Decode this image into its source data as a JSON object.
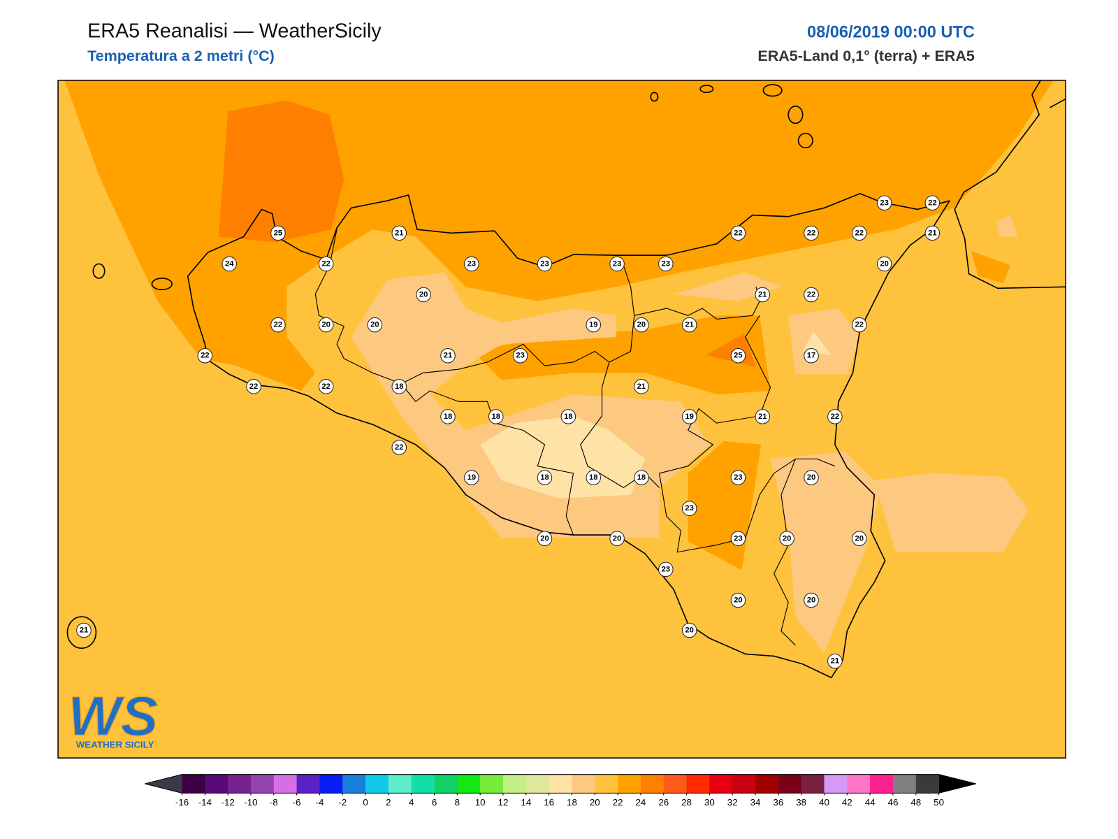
{
  "header": {
    "title": "ERA5 Reanalisi — WeatherSicily",
    "subtitle": "Temperatura a 2 metri (°C)",
    "date": "08/06/2019 00:00 UTC",
    "source": "ERA5-Land 0,1° (terra) + ERA5"
  },
  "stations": [
    25,
    21,
    22,
    22,
    22,
    23,
    22,
    21,
    24,
    22,
    23,
    23,
    23,
    23,
    20,
    20,
    21,
    22,
    22,
    20,
    20,
    19,
    20,
    21,
    22,
    22,
    21,
    23,
    25,
    17,
    22,
    22,
    18,
    21,
    18,
    18,
    18,
    19,
    21,
    22,
    22,
    19,
    18,
    18,
    18,
    23,
    20,
    23,
    20,
    20,
    23,
    20,
    20,
    23,
    20,
    20,
    20,
    21,
    21
  ],
  "colorbar": {
    "ticks": [
      -16,
      -14,
      -12,
      -10,
      -8,
      -6,
      -4,
      -2,
      0,
      2,
      4,
      6,
      8,
      10,
      12,
      14,
      16,
      18,
      20,
      22,
      24,
      26,
      28,
      30,
      32,
      34,
      36,
      38,
      40,
      42,
      44,
      46,
      48,
      50
    ],
    "colors": [
      "#3d0045",
      "#5a0a78",
      "#76238f",
      "#9444ad",
      "#d66fe6",
      "#5a21c7",
      "#0a1cf5",
      "#1a7edb",
      "#11c8e8",
      "#5fecc8",
      "#12dea8",
      "#12d065",
      "#12e812",
      "#78ea3c",
      "#c3ee86",
      "#dfe79c",
      "#ffe3a6",
      "#fdc880",
      "#ffc23d",
      "#ffa200",
      "#ff8000",
      "#ff5a1a",
      "#ff2a00",
      "#e80010",
      "#c80010",
      "#a00000",
      "#7a0018",
      "#782040",
      "#d49af5",
      "#ff77c7",
      "#ff2090",
      "#808080",
      "#3a3a3a"
    ],
    "under_color": "#3a3a48",
    "over_color": "#000000"
  },
  "logo": {
    "mark": "WS",
    "text": "WEATHER SICILY"
  }
}
